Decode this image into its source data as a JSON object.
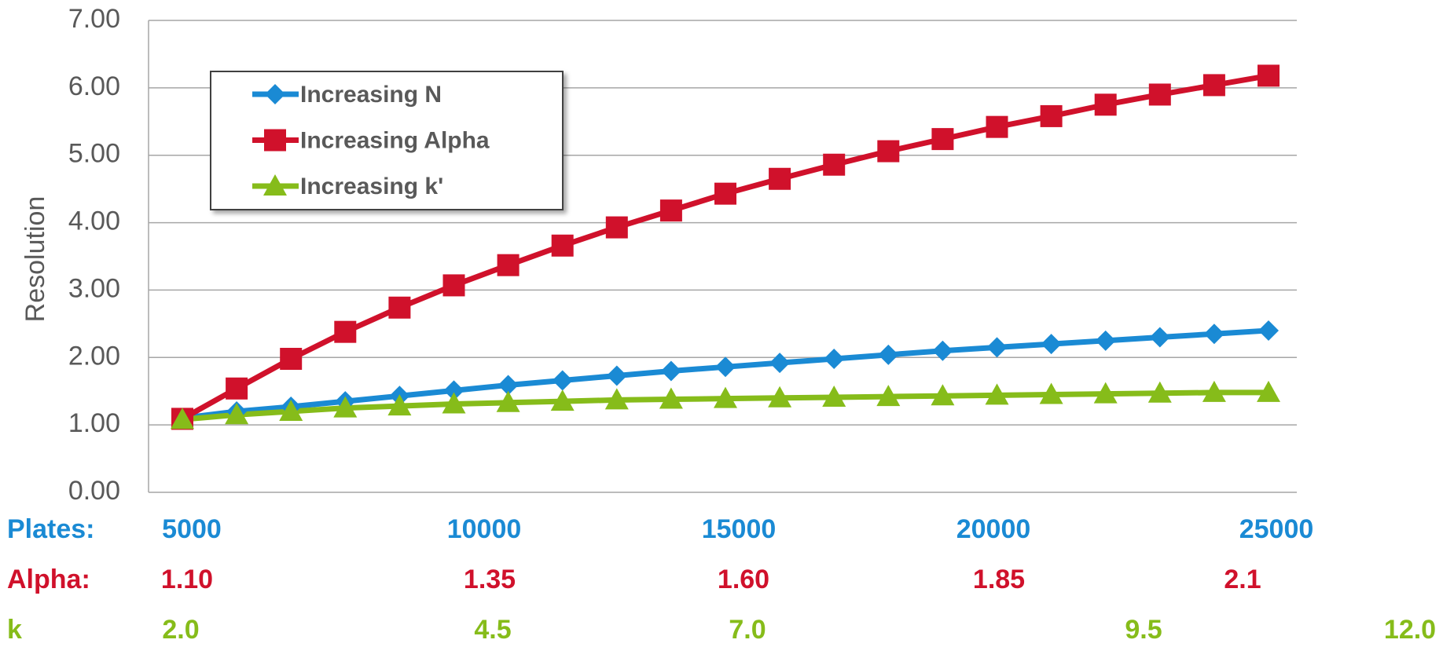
{
  "chart_data": {
    "type": "line",
    "y_label": "Resolution",
    "categories": [
      null,
      null,
      null,
      null,
      null,
      null,
      null,
      null,
      null,
      null,
      null,
      null,
      null,
      null,
      null,
      null,
      null,
      null,
      null,
      null,
      null
    ],
    "ylim": [
      0,
      7
    ],
    "yticks": [
      {
        "value": 0,
        "label": "0.00"
      },
      {
        "value": 1,
        "label": "1.00"
      },
      {
        "value": 2,
        "label": "2.00"
      },
      {
        "value": 3,
        "label": "3.00"
      },
      {
        "value": 4,
        "label": "4.00"
      },
      {
        "value": 5,
        "label": "5.00"
      },
      {
        "value": 6,
        "label": "6.00"
      },
      {
        "value": 7,
        "label": "7.00"
      }
    ],
    "grid": true,
    "legend": "upper left",
    "series": [
      {
        "name": "Increasing N",
        "color": "#1a8ad4",
        "marker": "diamond",
        "values": [
          1.1,
          1.2,
          1.27,
          1.35,
          1.43,
          1.51,
          1.59,
          1.66,
          1.73,
          1.8,
          1.86,
          1.92,
          1.98,
          2.04,
          2.1,
          2.15,
          2.2,
          2.25,
          2.3,
          2.35,
          2.4
        ]
      },
      {
        "name": "Increasing Alpha",
        "color": "#d0112b",
        "marker": "square",
        "values": [
          1.09,
          1.54,
          1.98,
          2.38,
          2.74,
          3.07,
          3.37,
          3.66,
          3.93,
          4.18,
          4.43,
          4.65,
          4.86,
          5.06,
          5.24,
          5.42,
          5.58,
          5.75,
          5.9,
          6.04,
          6.18
        ]
      },
      {
        "name": "Increasing k'",
        "color": "#86bc1a",
        "marker": "triangle",
        "values": [
          1.08,
          1.15,
          1.2,
          1.25,
          1.28,
          1.31,
          1.33,
          1.35,
          1.37,
          1.38,
          1.39,
          1.4,
          1.41,
          1.42,
          1.43,
          1.44,
          1.45,
          1.46,
          1.47,
          1.48,
          1.48
        ]
      }
    ],
    "x_label_rows": [
      {
        "name": "Plates:",
        "color": "#1a8ad4",
        "labels": [
          "5000",
          "10000",
          "15000",
          "20000",
          "25000"
        ]
      },
      {
        "name": "Alpha:",
        "color": "#d0112b",
        "labels": [
          "1.10",
          "1.35",
          "1.60",
          "1.85",
          "2.1"
        ]
      },
      {
        "name": "k",
        "color": "#86bc1a",
        "labels": [
          "2.0",
          "4.5",
          "7.0",
          "9.5",
          "12.0"
        ]
      }
    ]
  }
}
